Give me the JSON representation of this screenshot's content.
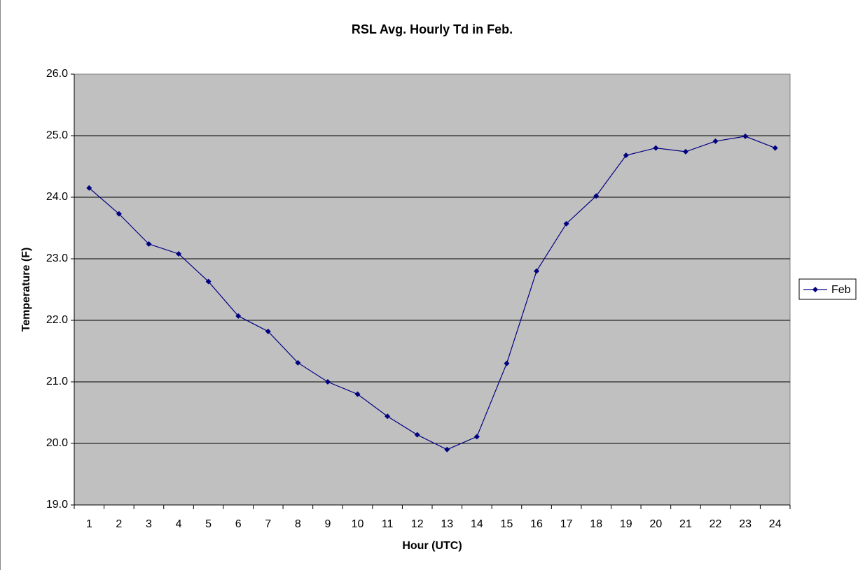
{
  "chart_data": {
    "type": "line",
    "title": "RSL Avg. Hourly Td in Feb.",
    "x_label": "Hour (UTC)",
    "y_label": "Temperature (F)",
    "categories": [
      1,
      2,
      3,
      4,
      5,
      6,
      7,
      8,
      9,
      10,
      11,
      12,
      13,
      14,
      15,
      16,
      17,
      18,
      19,
      20,
      21,
      22,
      23,
      24
    ],
    "series": [
      {
        "name": "Feb",
        "color": "#000080",
        "values": [
          24.15,
          23.73,
          23.24,
          23.08,
          22.63,
          22.07,
          21.82,
          21.31,
          21.0,
          20.8,
          20.44,
          20.14,
          19.9,
          20.11,
          21.3,
          22.8,
          23.57,
          24.02,
          24.68,
          24.8,
          24.74,
          24.91,
          24.99,
          24.8
        ]
      }
    ],
    "ylim": [
      19,
      26
    ],
    "yticks": [
      {
        "value": 19,
        "label": "19.0"
      },
      {
        "value": 20,
        "label": "20.0"
      },
      {
        "value": 21,
        "label": "21.0"
      },
      {
        "value": 22,
        "label": "22.0"
      },
      {
        "value": 23,
        "label": "23.0"
      },
      {
        "value": 24,
        "label": "24.0"
      },
      {
        "value": 25,
        "label": "25.0"
      },
      {
        "value": 26,
        "label": "26.0"
      }
    ],
    "grid": true,
    "legend": "right"
  }
}
